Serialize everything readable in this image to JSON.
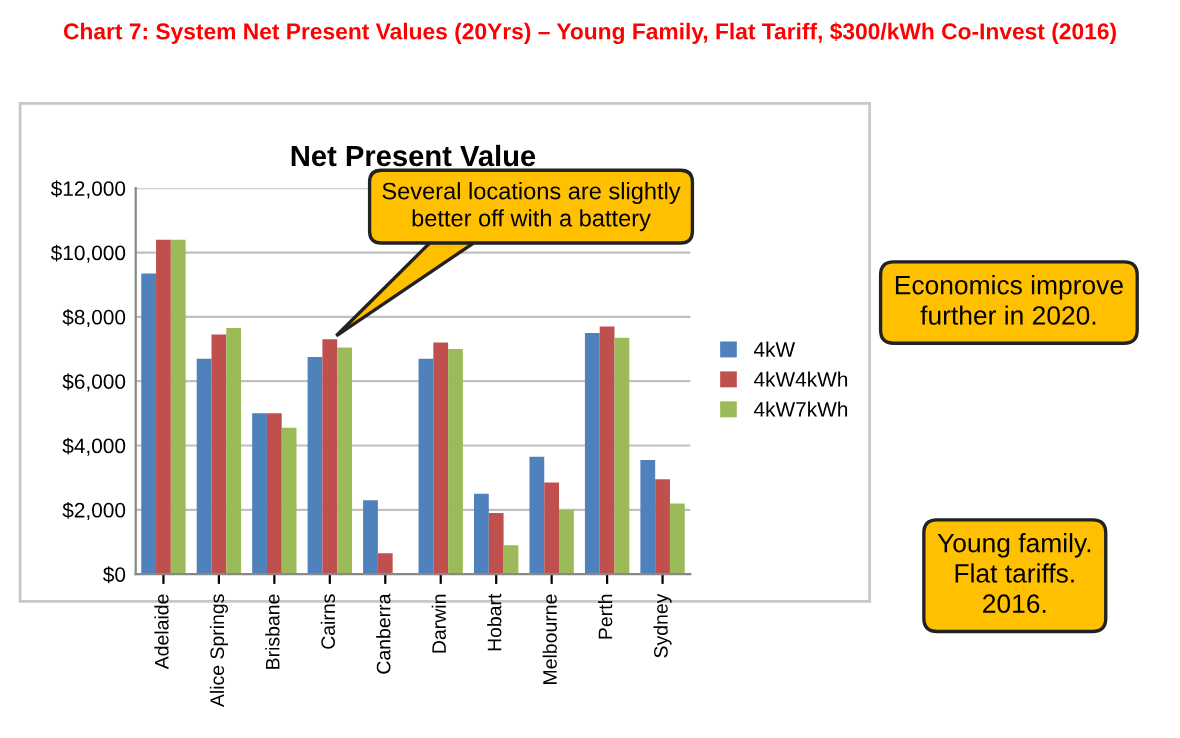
{
  "chart_data": {
    "type": "bar",
    "title": "Chart 7: System Net Present Values (20Yrs) – Young Family, Flat Tariff, $300/kWh Co-Invest (2016)",
    "subtitle": "Net Present Value",
    "categories": [
      "Adelaide",
      "Alice Springs",
      "Brisbane",
      "Cairns",
      "Canberra",
      "Darwin",
      "Hobart",
      "Melbourne",
      "Perth",
      "Sydney"
    ],
    "series": [
      {
        "name": "4kW",
        "color": "#4f81bd",
        "values": [
          9350,
          6700,
          5000,
          6750,
          2300,
          6700,
          2500,
          3650,
          7500,
          3550
        ]
      },
      {
        "name": "4kW4kWh",
        "color": "#c0504d",
        "values": [
          10400,
          7450,
          5000,
          7300,
          650,
          7200,
          1900,
          2850,
          7700,
          2950
        ]
      },
      {
        "name": "4kW7kWh",
        "color": "#9bbb59",
        "values": [
          10400,
          7650,
          4550,
          7050,
          0,
          7000,
          900,
          2000,
          7350,
          2200
        ]
      }
    ],
    "ylim": [
      0,
      12000
    ],
    "yticks": [
      {
        "value": 0,
        "label": "$0"
      },
      {
        "value": 2000,
        "label": "$2,000"
      },
      {
        "value": 4000,
        "label": "$4,000"
      },
      {
        "value": 6000,
        "label": "$6,000"
      },
      {
        "value": 8000,
        "label": "$8,000"
      },
      {
        "value": 10000,
        "label": "$10,000"
      },
      {
        "value": 12000,
        "label": "$12,000"
      }
    ],
    "grid": "y",
    "legend": "right",
    "annotations": [
      "Several locations are slightly\nbetter off with a battery",
      "Economics improve\nfurther in 2020.",
      "Young family.\nFlat tariffs.\n2016."
    ]
  }
}
